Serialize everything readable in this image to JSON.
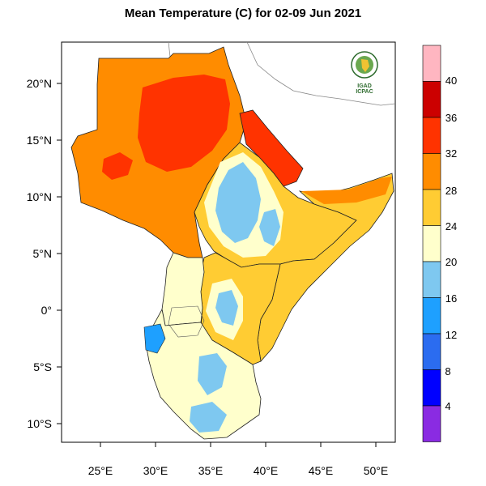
{
  "title": "Mean Temperature (C) for 02-09 Jun 2021",
  "logo": {
    "top_text": "IGAD",
    "bottom_text": "ICPAC"
  },
  "axes": {
    "lon_ticks": [
      "25°E",
      "30°E",
      "35°E",
      "40°E",
      "45°E",
      "50°E"
    ],
    "lat_ticks": [
      "20°N",
      "15°N",
      "10°N",
      "5°N",
      "0°",
      "5°S",
      "10°S"
    ]
  },
  "colorbar": {
    "labels": [
      "4",
      "8",
      "12",
      "16",
      "20",
      "24",
      "28",
      "32",
      "36",
      "40"
    ],
    "colors": [
      "#ffb6c1",
      "#cc0000",
      "#ff3300",
      "#ff8c00",
      "#ffcc33",
      "#ffffcc",
      "#7ec8f0",
      "#1ea0ff",
      "#2b6cf0",
      "#0000ff",
      "#8a2be2"
    ]
  }
}
